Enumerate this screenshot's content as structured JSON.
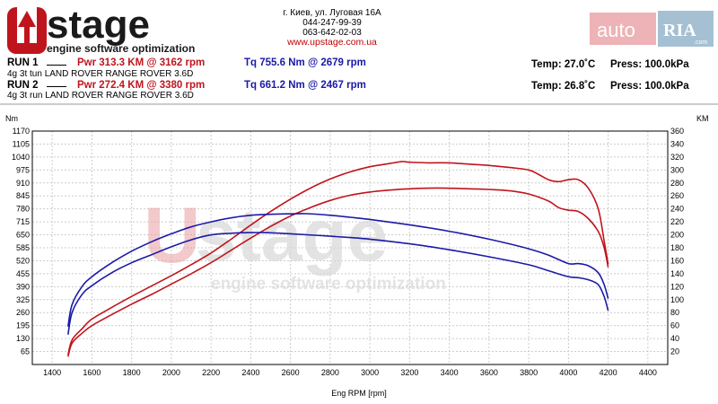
{
  "brand": {
    "logo_text": "UPstage",
    "tagline": "engine software optimization",
    "address": "г. Киев, ул. Луговая 16А",
    "phone1": "044-247-99-39",
    "phone2": "063-642-02-03",
    "url": "www.upstage.com.ua"
  },
  "watermark": {
    "auto": "auto",
    "ria": "RIA",
    "ria_sub": ".com"
  },
  "runs": [
    {
      "label": "RUN 1",
      "power": "Pwr  313.3 KM @ 3162 rpm",
      "torque": "Tq 755.6 Nm @ 2679 rpm",
      "temp": "Temp: 27.0˚C",
      "press": "Press: 100.0kPa",
      "desc": "4g 3t tun LAND ROVER RANGE ROVER 3.6D"
    },
    {
      "label": "RUN 2",
      "power": "Pwr  272.4 KM @ 3380 rpm",
      "torque": "Tq 661.2 Nm @ 2467 rpm",
      "temp": "Temp: 26.8˚C",
      "press": "Press: 100.0kPa",
      "desc": "4g 3t run LAND ROVER RANGE ROVER 3.6D"
    }
  ],
  "colors": {
    "power": "#c0141c",
    "torque": "#1a1aa8",
    "grid": "#cccccc",
    "watermark": "#e8a0a4"
  },
  "chart_data": {
    "type": "line",
    "xlabel": "Eng RPM [rpm]",
    "ylabel_left": "Nm",
    "ylabel_right": "KM",
    "xlim": [
      1300,
      4500
    ],
    "ylim_left": [
      0,
      1170
    ],
    "ylim_right": [
      0,
      360
    ],
    "x_ticks": [
      1400,
      1600,
      1800,
      2000,
      2200,
      2400,
      2600,
      2800,
      3000,
      3200,
      3400,
      3600,
      3800,
      4000,
      4200,
      4400
    ],
    "y_ticks_left": [
      65,
      130,
      195,
      260,
      325,
      390,
      455,
      520,
      585,
      650,
      715,
      780,
      845,
      910,
      975,
      1040,
      1105,
      1170
    ],
    "y_ticks_right": [
      20,
      40,
      60,
      80,
      100,
      120,
      140,
      160,
      180,
      200,
      220,
      240,
      260,
      280,
      300,
      320,
      340,
      360
    ],
    "grid": true,
    "series": [
      {
        "name": "Pwr RUN 1",
        "axis": "right",
        "color": "#c0141c",
        "x": [
          1480,
          1500,
          1550,
          1600,
          1700,
          1800,
          1900,
          2000,
          2100,
          2200,
          2300,
          2400,
          2500,
          2600,
          2700,
          2800,
          2900,
          3000,
          3100,
          3162,
          3200,
          3300,
          3400,
          3500,
          3600,
          3700,
          3800,
          3850,
          3900,
          3950,
          4000,
          4050,
          4100,
          4150,
          4180,
          4200
        ],
        "values": [
          15,
          38,
          55,
          70,
          88,
          105,
          121,
          137,
          154,
          172,
          193,
          215,
          236,
          255,
          272,
          286,
          297,
          305,
          310,
          313,
          312,
          311,
          311,
          309,
          307,
          304,
          300,
          293,
          285,
          282,
          285,
          285,
          272,
          240,
          190,
          155
        ]
      },
      {
        "name": "Pwr RUN 2",
        "axis": "right",
        "color": "#c0141c",
        "x": [
          1480,
          1500,
          1550,
          1600,
          1700,
          1800,
          1900,
          2000,
          2100,
          2200,
          2300,
          2400,
          2500,
          2600,
          2700,
          2800,
          2900,
          3000,
          3100,
          3200,
          3300,
          3380,
          3500,
          3600,
          3700,
          3800,
          3900,
          3950,
          4000,
          4050,
          4100,
          4150,
          4180,
          4200
        ],
        "values": [
          12,
          33,
          48,
          60,
          77,
          93,
          108,
          124,
          140,
          157,
          176,
          195,
          213,
          229,
          242,
          253,
          261,
          266,
          269,
          271,
          272,
          272,
          271,
          270,
          268,
          263,
          252,
          242,
          238,
          236,
          225,
          205,
          180,
          150
        ]
      },
      {
        "name": "Tq RUN 1",
        "axis": "left",
        "color": "#1a1aa8",
        "x": [
          1480,
          1500,
          1550,
          1600,
          1700,
          1800,
          1900,
          2000,
          2100,
          2200,
          2300,
          2400,
          2500,
          2600,
          2679,
          2800,
          2900,
          3000,
          3200,
          3400,
          3600,
          3800,
          3900,
          4000,
          4050,
          4100,
          4150,
          4180,
          4200
        ],
        "values": [
          190,
          300,
          390,
          440,
          510,
          568,
          615,
          655,
          690,
          715,
          735,
          748,
          753,
          755,
          756,
          748,
          738,
          727,
          700,
          668,
          628,
          580,
          548,
          506,
          506,
          495,
          460,
          400,
          330
        ]
      },
      {
        "name": "Tq RUN 2",
        "axis": "left",
        "color": "#1a1aa8",
        "x": [
          1480,
          1500,
          1550,
          1600,
          1700,
          1800,
          1900,
          2000,
          2100,
          2200,
          2300,
          2400,
          2467,
          2600,
          2800,
          3000,
          3200,
          3400,
          3600,
          3800,
          3900,
          4000,
          4050,
          4100,
          4150,
          4180,
          4200
        ],
        "values": [
          150,
          260,
          350,
          395,
          460,
          510,
          550,
          590,
          625,
          650,
          658,
          661,
          661,
          655,
          643,
          628,
          605,
          575,
          540,
          500,
          470,
          440,
          435,
          425,
          400,
          340,
          270
        ]
      }
    ]
  }
}
